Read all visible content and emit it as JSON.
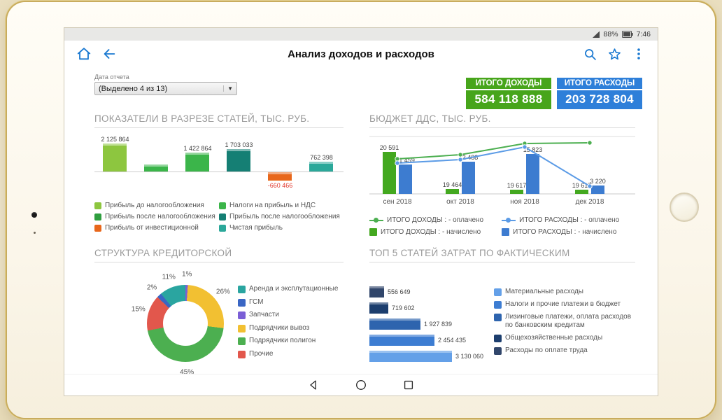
{
  "status_bar": {
    "battery": "88%",
    "time": "7:46"
  },
  "app_bar": {
    "title": "Анализ доходов и расходов"
  },
  "filter": {
    "label": "Дата отчета",
    "value": "(Выделено 4 из 13)"
  },
  "kpis": [
    {
      "id": "income",
      "label": "ИТОГО ДОХОДЫ",
      "value": "584 118 888",
      "color": "#47a51b"
    },
    {
      "id": "expense",
      "label": "ИТОГО РАСХОДЫ",
      "value": "203 728 804",
      "color": "#2e7fd9"
    }
  ],
  "chart_data": [
    {
      "id": "indicators",
      "type": "bar",
      "title": "ПОКАЗАТЕЛИ В РАЗРЕЗЕ СТАТЕЙ, ТЫС. РУБ.",
      "bars": [
        {
          "label": "2 125 864",
          "value": 2125864,
          "color": "#8dc63f"
        },
        {
          "label": "",
          "value": 530000,
          "color": "#3bb54a"
        },
        {
          "label": "1 422 864",
          "value": 1422864,
          "color": "#3bb54a"
        },
        {
          "label": "1 703 033",
          "value": 1703033,
          "color": "#157f74"
        },
        {
          "label": "-660 466",
          "value": -660466,
          "color": "#e8671b"
        },
        {
          "label": "762 398",
          "value": 762398,
          "color": "#2ba89a"
        }
      ],
      "legend": [
        {
          "label": "Прибыль до налогообложения",
          "color": "#8dc63f"
        },
        {
          "label": "Прибыль после налогообложения",
          "color": "#2f9e3f"
        },
        {
          "label": "Прибыль от инвестиционной",
          "color": "#e8671b"
        },
        {
          "label": "Налоги на прибыль и НДС",
          "color": "#3bb54a"
        },
        {
          "label": "Прибыль после налогообложения",
          "color": "#157f74"
        },
        {
          "label": "Чистая прибыль",
          "color": "#2ba89a"
        }
      ]
    },
    {
      "id": "dds-budget",
      "type": "bar-line",
      "title": "БЮДЖЕТ ДДС, ТЫС. РУБ.",
      "categories": [
        "сен 2018",
        "окт 2018",
        "ноя 2018",
        "дек 2018"
      ],
      "series": [
        {
          "name": "ИТОГО ДОХОДЫ : - начислено",
          "kind": "bar",
          "color": "#43a81f",
          "labels": [
            "20 591",
            "19 464",
            "19 617",
            "19 617"
          ],
          "bar_heights": [
            60,
            7,
            6,
            6
          ]
        },
        {
          "name": "ИТОГО РАСХОДЫ : - начислено",
          "kind": "bar",
          "color": "#3d7cd0",
          "labels": [
            "11 459",
            "12 488",
            "15 823",
            "3 220"
          ],
          "bar_heights": [
            42,
            46,
            57,
            12
          ]
        },
        {
          "name": "ИТОГО ДОХОДЫ : - оплачено",
          "kind": "line",
          "color": "#4caf50",
          "points_y": [
            38,
            32,
            16,
            15
          ]
        },
        {
          "name": "ИТОГО РАСХОДЫ : - оплачено",
          "kind": "line",
          "color": "#5b9be6",
          "points_y": [
            44,
            39,
            21,
            77
          ]
        }
      ],
      "legend": [
        {
          "label": "ИТОГО ДОХОДЫ : - оплачено",
          "color": "#4caf50",
          "marker": "line"
        },
        {
          "label": "ИТОГО ДОХОДЫ : - начислено",
          "color": "#43a81f",
          "marker": "square"
        },
        {
          "label": "ИТОГО РАСХОДЫ : - оплачено",
          "color": "#5b9be6",
          "marker": "line"
        },
        {
          "label": "ИТОГО РАСХОДЫ : - начислено",
          "color": "#3d7cd0",
          "marker": "square"
        }
      ]
    },
    {
      "id": "creditor-structure",
      "type": "pie",
      "title": "СТРУКТУРА КРЕДИТОРСКОЙ",
      "segments": [
        {
          "label": "Запчасти",
          "pct": 1,
          "color": "#7b5fd6"
        },
        {
          "label": "Подрядчики вывоз",
          "pct": 26,
          "color": "#f2c032"
        },
        {
          "label": "Подрядчики полигон",
          "pct": 45,
          "color": "#4caf50"
        },
        {
          "label": "Прочие",
          "pct": 15,
          "color": "#e2574c"
        },
        {
          "label": "ГСМ",
          "pct": 2,
          "color": "#3a66c4"
        },
        {
          "label": "Аренда и эксплутационные",
          "pct": 11,
          "color": "#2aa5a0"
        }
      ],
      "legend": [
        {
          "label": "Аренда и эксплутационные",
          "color": "#2aa5a0"
        },
        {
          "label": "ГСМ",
          "color": "#3a66c4"
        },
        {
          "label": "Запчасти",
          "color": "#7b5fd6"
        },
        {
          "label": "Подрядчики вывоз",
          "color": "#f2c032"
        },
        {
          "label": "Подрядчики полигон",
          "color": "#4caf50"
        },
        {
          "label": "Прочие",
          "color": "#e2574c"
        }
      ]
    },
    {
      "id": "top5-costs",
      "type": "hbar",
      "title": "ТОП 5 СТАТЕЙ ЗАТРАТ ПО ФАКТИЧЕСКИМ",
      "bars": [
        {
          "label": "556 649",
          "value": 556649,
          "color": "#31466b"
        },
        {
          "label": "719 602",
          "value": 719602,
          "color": "#1c3e6e"
        },
        {
          "label": "1 927 839",
          "value": 1927839,
          "color": "#2e64ae"
        },
        {
          "label": "2 454 435",
          "value": 2454435,
          "color": "#3d7dd2"
        },
        {
          "label": "3 130 060",
          "value": 3130060,
          "color": "#64a0e8"
        }
      ],
      "legend": [
        {
          "label": "Материальные расходы",
          "color": "#64a0e8"
        },
        {
          "label": "Налоги и прочие платежи в бюджет",
          "color": "#3d7dd2"
        },
        {
          "label": "Лизинговые платежи, оплата расходов по банковским кредитам",
          "color": "#2e64ae"
        },
        {
          "label": "Общехозяйственные расходы",
          "color": "#1c3e6e"
        },
        {
          "label": "Расходы по оплате труда",
          "color": "#31466b"
        }
      ]
    }
  ]
}
